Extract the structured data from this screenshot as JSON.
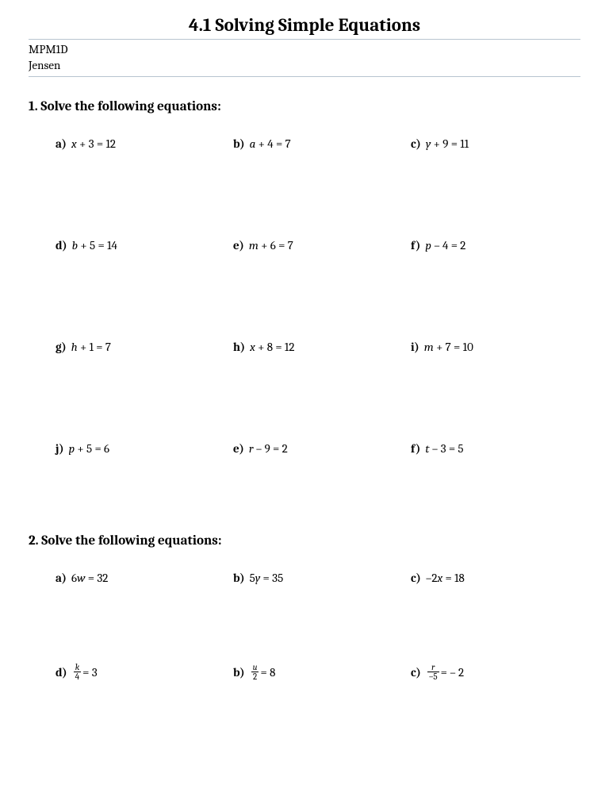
{
  "page": {
    "title": "4.1 Solving Simple Equations",
    "course": "MPM1D",
    "teacher": "Jensen",
    "background_color": "#ffffff",
    "text_color": "#000000",
    "rule_color": "#b8c4d0",
    "title_fontsize": 23,
    "heading_fontsize": 17,
    "body_fontsize": 15
  },
  "section1": {
    "heading": "1. Solve the following equations:",
    "rows": [
      [
        {
          "label": "a)",
          "var": "x",
          "expr_rest": " + 3 = 12"
        },
        {
          "label": "b)",
          "var": "a",
          "expr_rest": " + 4 = 7"
        },
        {
          "label": "c)",
          "var": "y",
          "expr_rest": " + 9 = 11"
        }
      ],
      [
        {
          "label": "d)",
          "var": "b",
          "expr_rest": " + 5 = 14"
        },
        {
          "label": "e)",
          "var": "m",
          "expr_rest": " + 6 = 7"
        },
        {
          "label": "f)",
          "var": "p",
          "expr_rest": " – 4 = 2"
        }
      ],
      [
        {
          "label": "g)",
          "var": "h",
          "expr_rest": " + 1 = 7"
        },
        {
          "label": "h)",
          "var": "x",
          "expr_rest": " + 8 = 12"
        },
        {
          "label": "i)",
          "var": "m",
          "expr_rest": " + 7 = 10"
        }
      ],
      [
        {
          "label": "j)",
          "var": "p",
          "expr_rest": " + 5 = 6"
        },
        {
          "label": "e)",
          "var": "r",
          "expr_rest": " – 9 = 2"
        },
        {
          "label": "f)",
          "var": "t",
          "expr_rest": " – 3 = 5"
        }
      ]
    ]
  },
  "section2": {
    "heading": "2. Solve the following equations:",
    "rows": [
      [
        {
          "label": "a)",
          "coef": "6",
          "var": "w",
          "expr_rest": " = 32"
        },
        {
          "label": "b)",
          "coef": "5",
          "var": "y",
          "expr_rest": " = 35"
        },
        {
          "label": "c)",
          "coef": "–2",
          "var": "x",
          "expr_rest": " = 18"
        }
      ],
      [
        {
          "label": "d)",
          "frac_num": "k",
          "frac_den": "4",
          "expr_rest": " = 3"
        },
        {
          "label": "b)",
          "frac_num": "u",
          "frac_den": "2",
          "expr_rest": " = 8"
        },
        {
          "label": "c)",
          "frac_num": "r",
          "frac_den": "–5",
          "expr_rest": " = – 2"
        }
      ]
    ]
  }
}
